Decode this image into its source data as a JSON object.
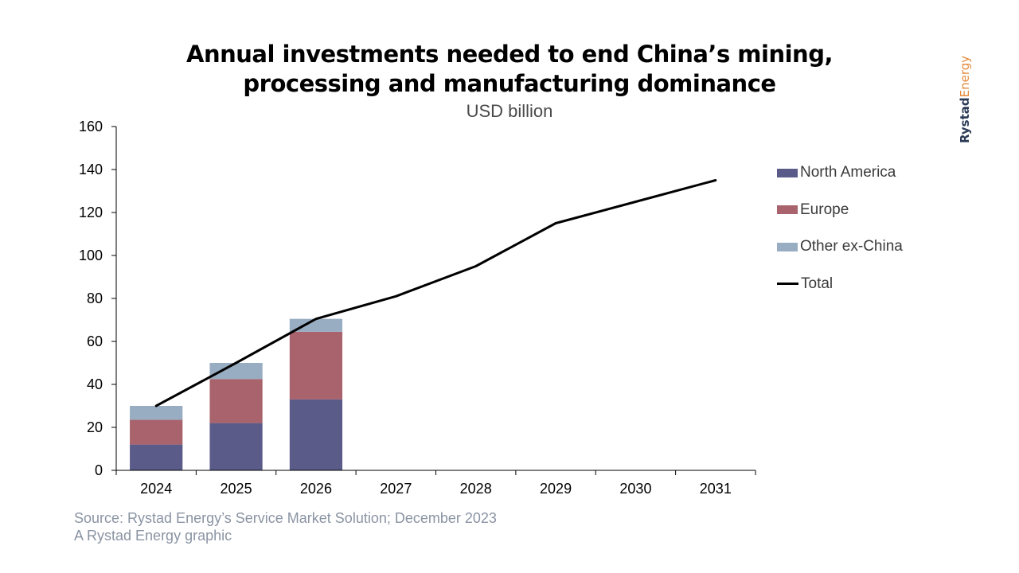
{
  "title_line1": "Annual investments needed to end China’s mining,",
  "title_line2": "processing and manufacturing dominance",
  "subtitle": "USD billion",
  "source_line1": "Source: Rystad Energy’s Service Market Solution; December 2023",
  "source_line2": "A Rystad Energy graphic",
  "brand": {
    "part1": "Rystad",
    "part2": "Energy"
  },
  "colors": {
    "north_america": "#5b5b8a",
    "europe": "#a8636c",
    "other": "#99adc2",
    "total": "#000000",
    "brand_dark": "#2b3a55",
    "brand_accent": "#e58a3c"
  },
  "chart_data": {
    "type": "bar",
    "title": "Annual investments needed to end China’s mining, processing and manufacturing dominance",
    "subtitle": "USD billion",
    "categories": [
      "2024",
      "2025",
      "2026",
      "2027",
      "2028",
      "2029",
      "2030",
      "2031"
    ],
    "ylim": [
      0,
      160
    ],
    "yticks": [
      "0",
      "20",
      "40",
      "60",
      "80",
      "100",
      "120",
      "140",
      "160"
    ],
    "legend_position": "right",
    "grid": false,
    "series": [
      {
        "name": "North America",
        "kind": "stacked-bar",
        "values": [
          12,
          22,
          33,
          null,
          null,
          null,
          null,
          null
        ]
      },
      {
        "name": "Europe",
        "kind": "stacked-bar",
        "values": [
          11.5,
          20.5,
          31.5,
          null,
          null,
          null,
          null,
          null
        ]
      },
      {
        "name": "Other ex-China",
        "kind": "stacked-bar",
        "values": [
          6.5,
          7.5,
          6,
          null,
          null,
          null,
          null,
          null
        ]
      },
      {
        "name": "Total",
        "kind": "line",
        "values": [
          30,
          50,
          70.5,
          81,
          95,
          115,
          125,
          135
        ]
      }
    ]
  }
}
